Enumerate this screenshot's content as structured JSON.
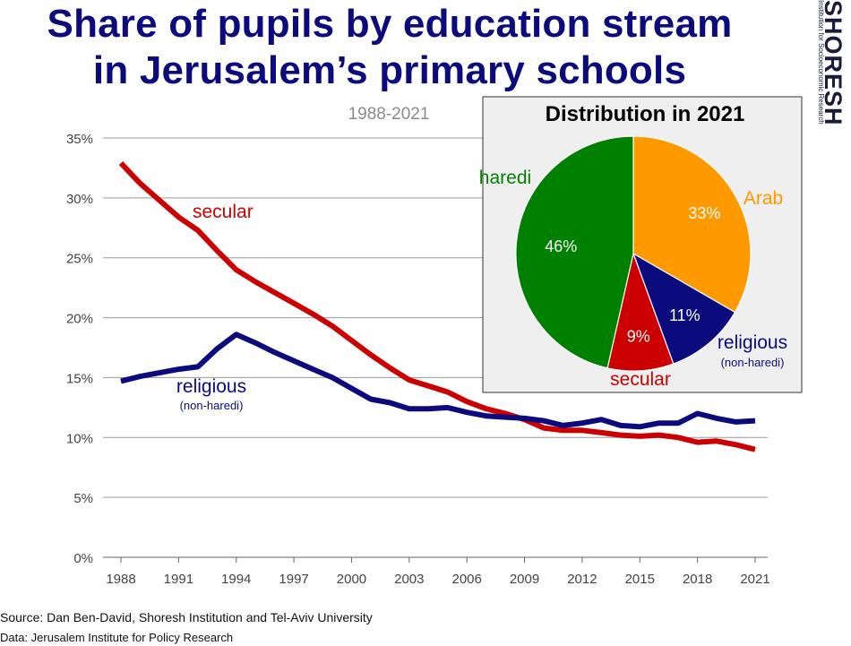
{
  "header": {
    "title_line1": "Share of pupils by education stream",
    "title_line2": "in Jerusalem’s primary schools",
    "logo_text": "SHORESH",
    "logo_subtext": "Institution for Socioeconomic Research"
  },
  "footer": {
    "source": "Source: Dan Ben-David, Shoresh Institution and Tel-Aviv University",
    "data": "Data: Jerusalem Institute for Policy Research"
  },
  "chart_data": [
    {
      "type": "line",
      "subtitle": "1988-2021",
      "xlim": [
        1988,
        2021
      ],
      "ylim": [
        0,
        35
      ],
      "y_ticks": [
        "0%",
        "5%",
        "10%",
        "15%",
        "20%",
        "25%",
        "30%",
        "35%"
      ],
      "x_ticks": [
        "1988",
        "1991",
        "1994",
        "1997",
        "2000",
        "2003",
        "2006",
        "2009",
        "2012",
        "2015",
        "2018",
        "2021"
      ],
      "grid": true,
      "x": [
        1988,
        1989,
        1990,
        1991,
        1992,
        1993,
        1994,
        1995,
        1996,
        1997,
        1998,
        1999,
        2000,
        2001,
        2002,
        2003,
        2004,
        2005,
        2006,
        2007,
        2008,
        2009,
        2010,
        2011,
        2012,
        2013,
        2014,
        2015,
        2016,
        2017,
        2018,
        2019,
        2020,
        2021
      ],
      "series": [
        {
          "name": "secular",
          "color": "#cc0000",
          "values": [
            32.9,
            31.2,
            29.8,
            28.4,
            27.3,
            25.6,
            24.0,
            23.0,
            22.1,
            21.2,
            20.3,
            19.3,
            18.1,
            16.9,
            15.8,
            14.8,
            14.3,
            13.8,
            13.0,
            12.4,
            12.0,
            11.5,
            10.8,
            10.6,
            10.6,
            10.4,
            10.2,
            10.1,
            10.2,
            10.0,
            9.6,
            9.7,
            9.4,
            9.0
          ]
        },
        {
          "name": "religious",
          "note": "(non-haredi)",
          "color": "#0b0b7e",
          "values": [
            14.7,
            15.1,
            15.4,
            15.7,
            15.9,
            17.4,
            18.6,
            17.9,
            17.1,
            16.4,
            15.7,
            15.0,
            14.1,
            13.2,
            12.9,
            12.4,
            12.4,
            12.5,
            12.1,
            11.8,
            11.7,
            11.6,
            11.4,
            11.0,
            11.2,
            11.5,
            11.0,
            10.9,
            11.2,
            11.2,
            12.0,
            11.6,
            11.3,
            11.4
          ]
        }
      ]
    },
    {
      "type": "pie",
      "title": "Distribution in 2021",
      "slices": [
        {
          "name": "Arab",
          "value": 33,
          "label": "33%",
          "color": "#ff9900"
        },
        {
          "name": "religious",
          "note": "(non-haredi)",
          "value": 11,
          "label": "11%",
          "color": "#0b0b7e"
        },
        {
          "name": "secular",
          "value": 9,
          "label": "9%",
          "color": "#cc0000"
        },
        {
          "name": "haredi",
          "value": 46,
          "label": "46%",
          "color": "#008000"
        }
      ]
    }
  ]
}
